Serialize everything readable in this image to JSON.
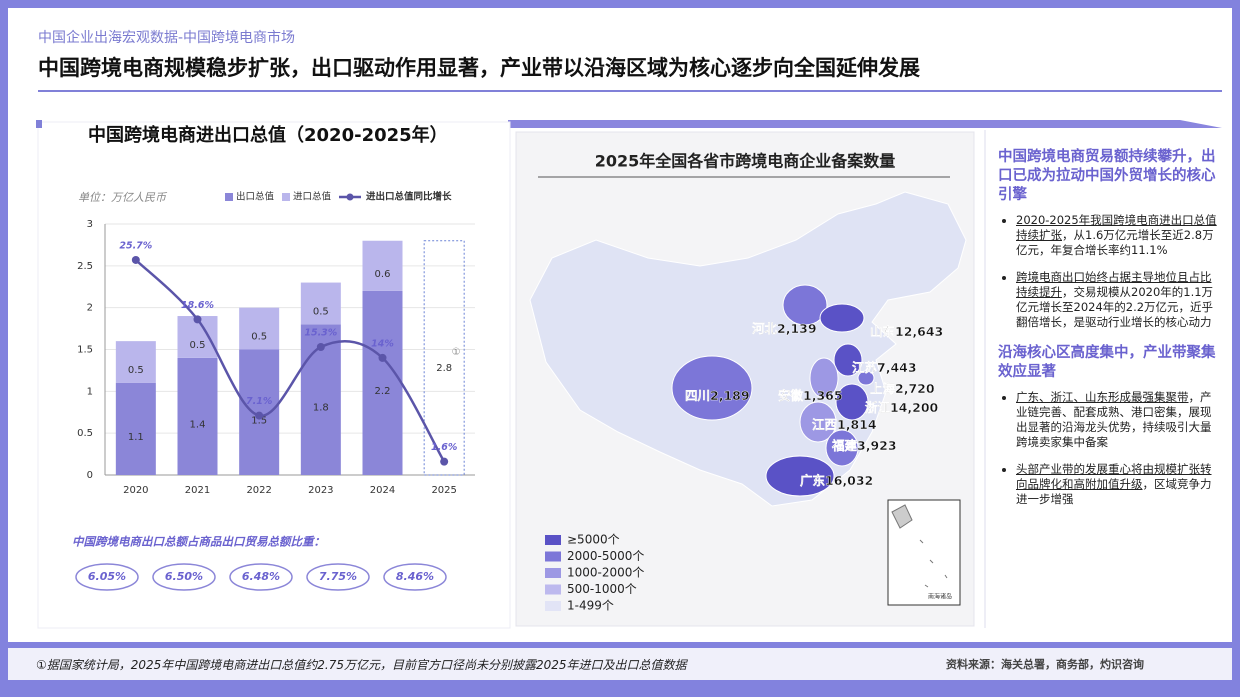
{
  "header": {
    "breadcrumb": "中国企业出海宏观数据-中国跨境电商市场",
    "title": "中国跨境电商规模稳步扩张，出口驱动作用显著，产业带以沿海区域为核心逐步向全国延伸发展"
  },
  "chart_data": [
    {
      "type": "bar",
      "stacked": true,
      "title": "中国跨境电商进出口总值（2020-2025年）",
      "unit": "单位：万亿人民币",
      "categories": [
        "2020",
        "2021",
        "2022",
        "2023",
        "2024",
        "2025"
      ],
      "series": [
        {
          "name": "出口总值",
          "color": "#8b86d8",
          "values": [
            1.1,
            1.4,
            1.5,
            1.8,
            2.2,
            null
          ]
        },
        {
          "name": "进口总值",
          "color": "#bab6ec",
          "values": [
            0.5,
            0.5,
            0.5,
            0.5,
            0.6,
            null
          ]
        },
        {
          "name": "进出口总值同比增长",
          "type": "line",
          "axis": "y2",
          "color": "#5b55a9",
          "values": [
            25.7,
            18.6,
            7.1,
            15.3,
            14,
            1.6
          ],
          "value_labels": [
            "25.7%",
            "18.6%",
            "7.1%",
            "15.3%",
            "14%",
            "1.6%"
          ]
        }
      ],
      "projection": {
        "category": "2025",
        "value": 2.8,
        "note": "①"
      },
      "ylim": [
        0,
        3
      ],
      "yticks": [
        0,
        0.5,
        1,
        1.5,
        2,
        2.5,
        3
      ],
      "y2lim": [
        0,
        30
      ],
      "grid": true,
      "legend": "top"
    },
    {
      "type": "map",
      "title": "2025年全国各省市跨境电商企业备案数量",
      "regions": [
        "河北",
        "山东",
        "江苏",
        "上海",
        "浙江",
        "安徽",
        "四川",
        "江西",
        "福建",
        "广东"
      ],
      "values": [
        2139,
        12643,
        7443,
        2720,
        14200,
        1365,
        2189,
        1814,
        3923,
        16032
      ],
      "value_labels": [
        "2,139",
        "12,643",
        "7,443",
        "2,720",
        "14,200",
        "1,365",
        "2,189",
        "1,814",
        "3,923",
        "16,032"
      ],
      "legend": [
        {
          "label": "≥5000个",
          "min": 5000,
          "color": "#5a52c6"
        },
        {
          "label": "2000-5000个",
          "min": 2000,
          "color": "#7c76d8"
        },
        {
          "label": "1000-2000个",
          "min": 1000,
          "color": "#9d98e4"
        },
        {
          "label": "500-1000个",
          "min": 500,
          "color": "#bdb9ee"
        },
        {
          "label": "1-499个",
          "min": 1,
          "color": "#e2e4f6"
        }
      ],
      "inset_label": "南海诸岛"
    }
  ],
  "ratio": {
    "title": "中国跨境电商出口总额占商品出口贸易总额比重：",
    "values": [
      "6.05%",
      "6.50%",
      "6.48%",
      "7.75%",
      "8.46%"
    ]
  },
  "insights": {
    "sections": [
      {
        "heading": "中国跨境电商贸易额持续攀升，出口已成为拉动中国外贸增长的核心引擎",
        "bullets": [
          {
            "underlined": "2020-2025年我国跨境电商进出口总值持续扩张",
            "text": "，从1.6万亿元增长至近2.8万亿元，年复合增长率约11.1%"
          },
          {
            "underlined": "跨境电商出口始终占据主导地位且占比持续提升",
            "text": "，交易规模从2020年的1.1万亿元增长至2024年的2.2万亿元，近乎翻倍增长，是驱动行业增长的核心动力"
          }
        ]
      },
      {
        "heading": "沿海核心区高度集中，产业带聚集效应显著",
        "bullets": [
          {
            "underlined": "广东、浙江、山东形成最强集聚带",
            "text": "，产业链完善、配套成熟、港口密集，展现出显著的沿海龙头优势，持续吸引大量跨境卖家集中备案"
          },
          {
            "underlined": "头部产业带的发展重心将由规模扩张转向品牌化和高附加值升级",
            "text": "，区域竞争力进一步增强"
          }
        ]
      }
    ]
  },
  "footer": {
    "note": "①据国家统计局，2025年中国跨境电商进出口总值约2.75万亿元，目前官方口径尚未分别披露2025年进口及出口总值数据",
    "source": "资料来源：海关总署，商务部，灼识咨询"
  }
}
